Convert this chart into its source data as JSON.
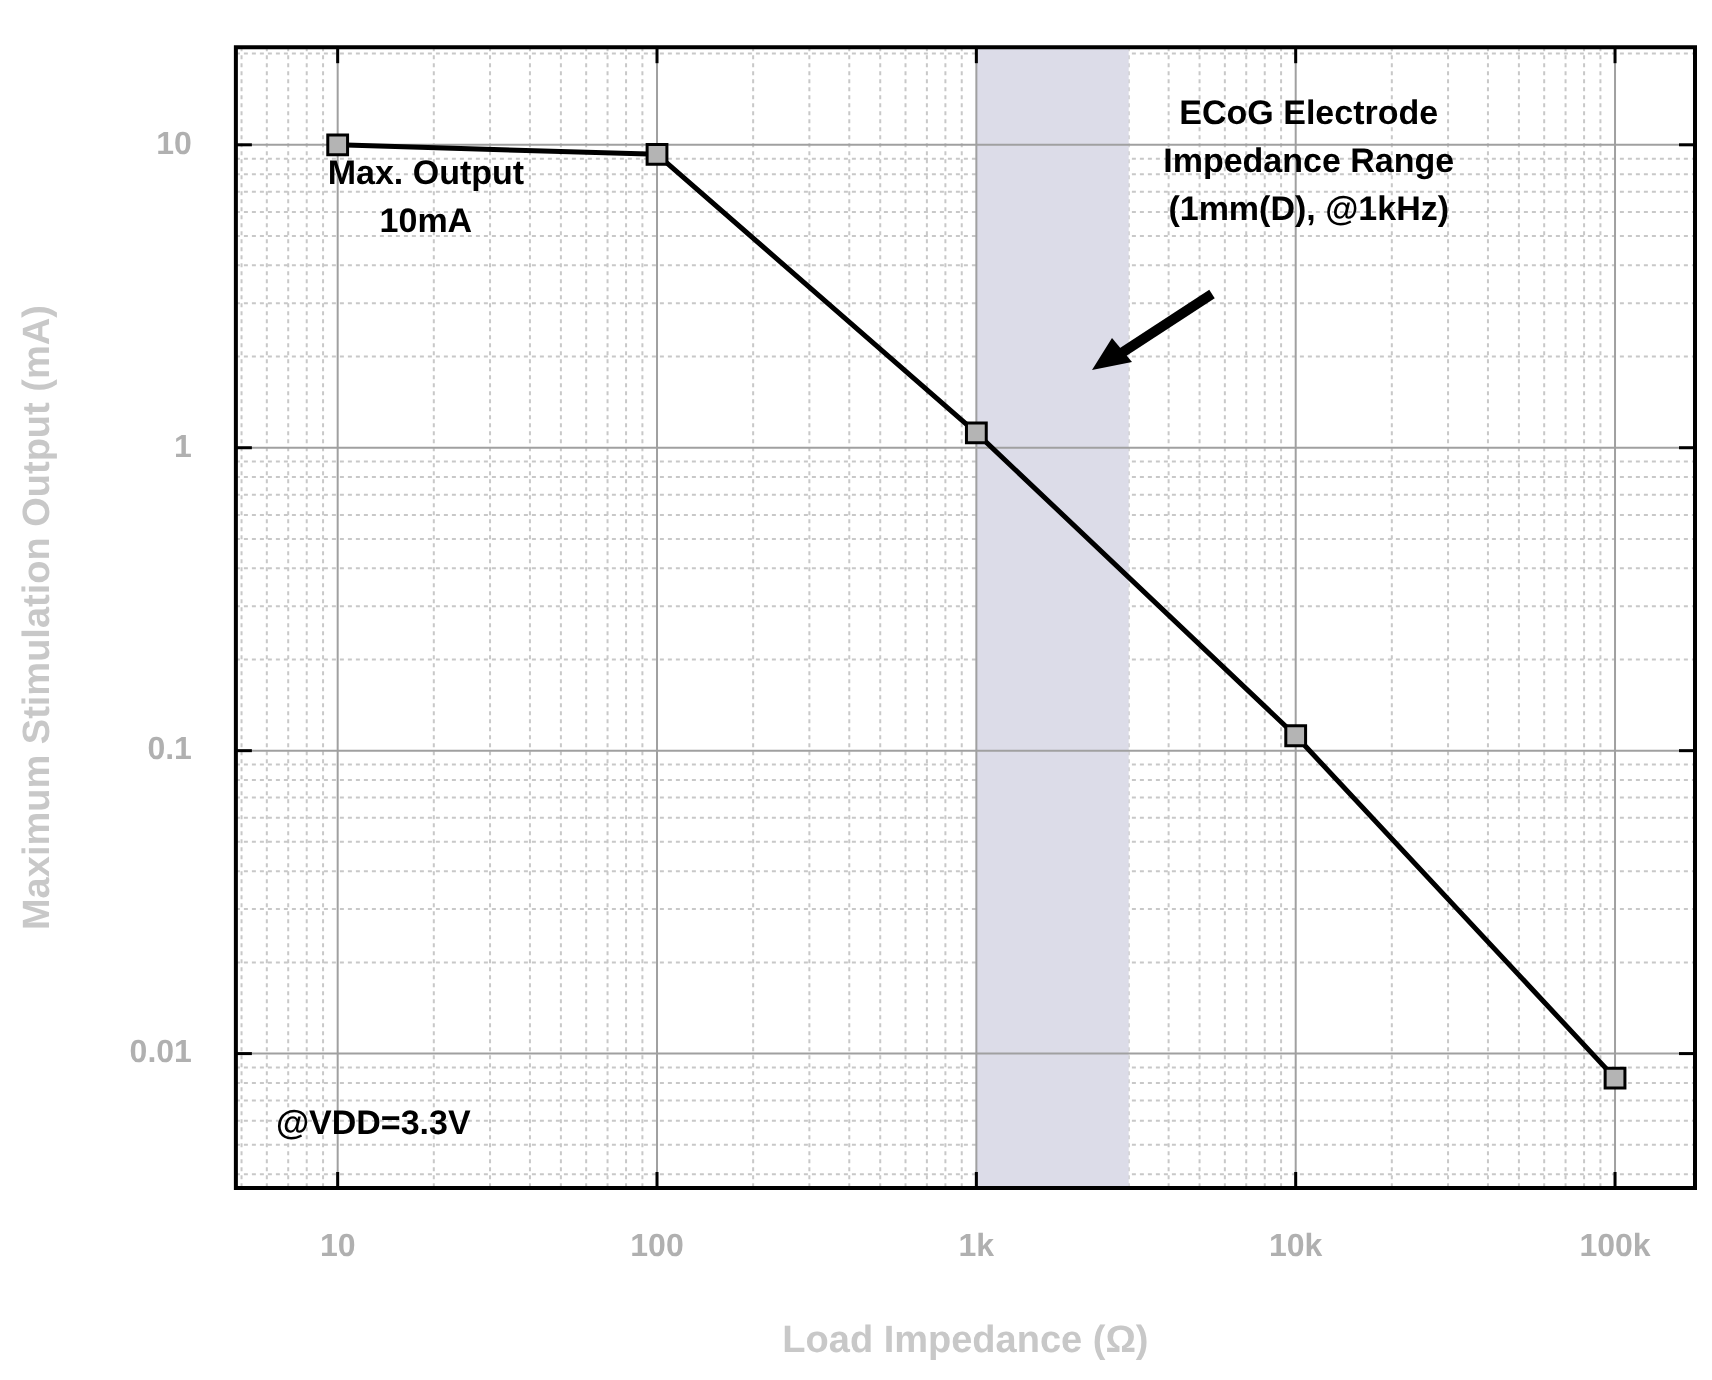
{
  "chart_data": {
    "type": "line",
    "xlabel": "Load Impedance (Ω)",
    "ylabel": "Maximum Stimulation Output (mA)",
    "x": [
      10,
      100,
      1000,
      10000,
      100000
    ],
    "series": [
      {
        "color": "#000000",
        "values": [
          10,
          9.3,
          1.12,
          0.112,
          0.0083
        ]
      }
    ],
    "log": "xy",
    "xlim": [
      4.8,
      178000
    ],
    "ylim": [
      0.0036,
      21
    ],
    "xticks": [
      {
        "value": 10,
        "label": "10"
      },
      {
        "value": 100,
        "label": "100"
      },
      {
        "value": 1000,
        "label": "1k"
      },
      {
        "value": 10000,
        "label": "10k"
      },
      {
        "value": 100000,
        "label": "100k"
      }
    ],
    "yticks": [
      0.01,
      0.1,
      1,
      10
    ],
    "grid": true,
    "legend": false,
    "marker": "square",
    "line_style": "solid",
    "bands": [
      {
        "axis": "x",
        "from": 1000,
        "to": 3000,
        "label": "ECoG Electrode\nImpedance Range\n(1mm(D), @1kHz)",
        "color": "#dcdce8"
      }
    ],
    "annotations": [
      "Max. Output\n10mA",
      "@VDD=3.3V"
    ]
  }
}
